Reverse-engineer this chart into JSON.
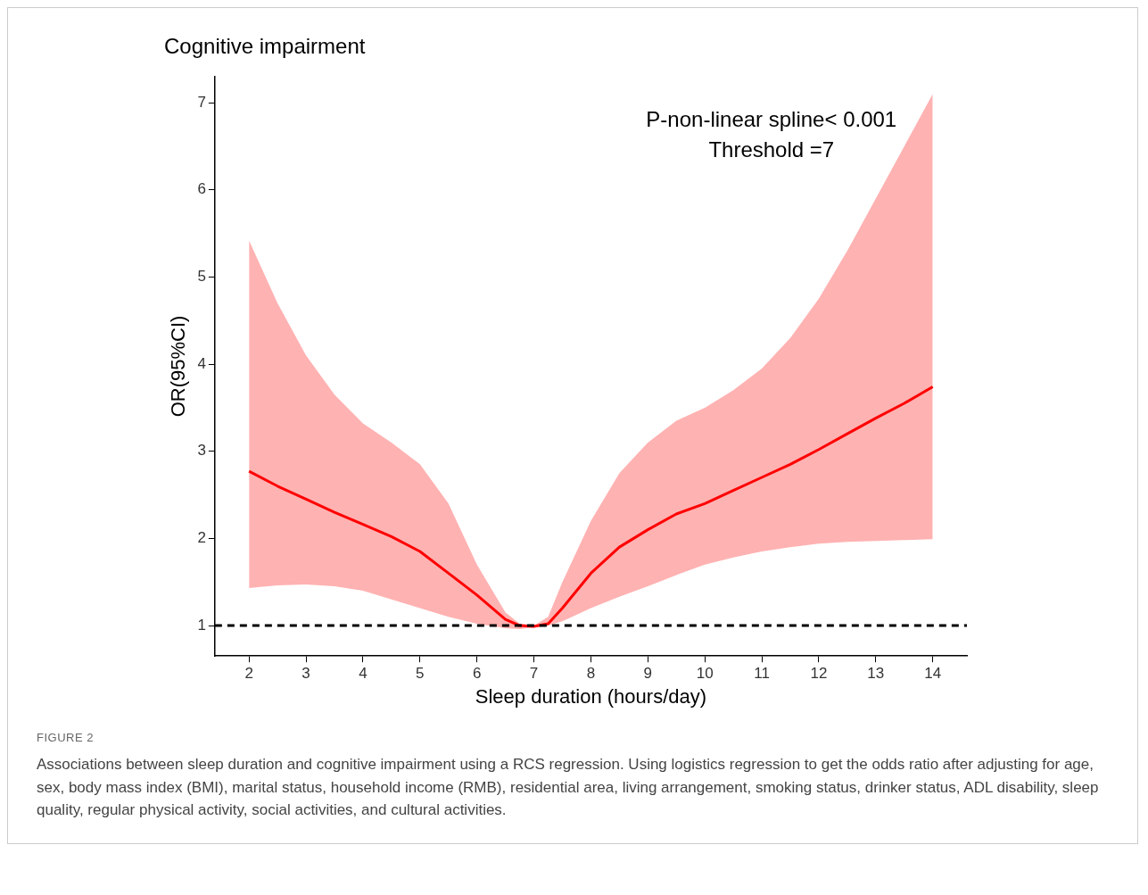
{
  "chart_data": {
    "type": "line",
    "title": "Cognitive impairment",
    "xlabel": "Sleep duration (hours/day)",
    "ylabel": "OR(95%CI)",
    "x": [
      2,
      2.5,
      3,
      3.5,
      4,
      4.5,
      5,
      5.5,
      6,
      6.5,
      6.75,
      7,
      7.25,
      7.5,
      8,
      8.5,
      9,
      9.5,
      10,
      10.5,
      11,
      11.5,
      12,
      12.5,
      13,
      13.5,
      14
    ],
    "series": [
      {
        "color": "#ff0000",
        "values": [
          2.77,
          2.6,
          2.45,
          2.3,
          2.16,
          2.02,
          1.85,
          1.6,
          1.35,
          1.07,
          1.0,
          0.99,
          1.02,
          1.2,
          1.6,
          1.9,
          2.1,
          2.28,
          2.4,
          2.55,
          2.7,
          2.85,
          3.02,
          3.2,
          3.38,
          3.55,
          3.74
        ],
        "lower": [
          1.43,
          1.46,
          1.47,
          1.45,
          1.4,
          1.3,
          1.2,
          1.1,
          1.02,
          0.97,
          0.96,
          0.98,
          1.0,
          1.05,
          1.2,
          1.33,
          1.45,
          1.58,
          1.7,
          1.78,
          1.85,
          1.9,
          1.94,
          1.96,
          1.97,
          1.98,
          1.99
        ],
        "upper": [
          5.42,
          4.7,
          4.1,
          3.65,
          3.32,
          3.1,
          2.85,
          2.4,
          1.7,
          1.15,
          1.02,
          1.0,
          1.1,
          1.5,
          2.2,
          2.75,
          3.1,
          3.35,
          3.5,
          3.7,
          3.95,
          4.3,
          4.75,
          5.3,
          5.9,
          6.5,
          7.1
        ]
      }
    ],
    "xlim": [
      1.4,
      14.6
    ],
    "xticks": [
      2,
      3,
      4,
      5,
      6,
      7,
      8,
      9,
      10,
      11,
      12,
      13,
      14
    ],
    "ylim": [
      0.65,
      7.3
    ],
    "yticks": [
      1,
      2,
      3,
      4,
      5,
      6,
      7
    ],
    "ref_lines": [
      {
        "axis": "y",
        "value": 1,
        "color": "#000000",
        "line_style": "dashed"
      }
    ],
    "grid": false,
    "legend": false,
    "marker": "none",
    "line_style": "solid",
    "annotations": [
      "P-non-linear spline< 0.001",
      "Threshold =7",
      "FIGURE 2",
      "Associations between sleep duration and cognitive impairment using a RCS regression. Using logistics regression to get the odds ratio after adjusting for age, sex, body mass index (BMI), marital status, household income (RMB), residential area, living arrangement, smoking status, drinker status, ADL disability, sleep quality, regular physical activity, social activities, and cultural activities."
    ]
  }
}
